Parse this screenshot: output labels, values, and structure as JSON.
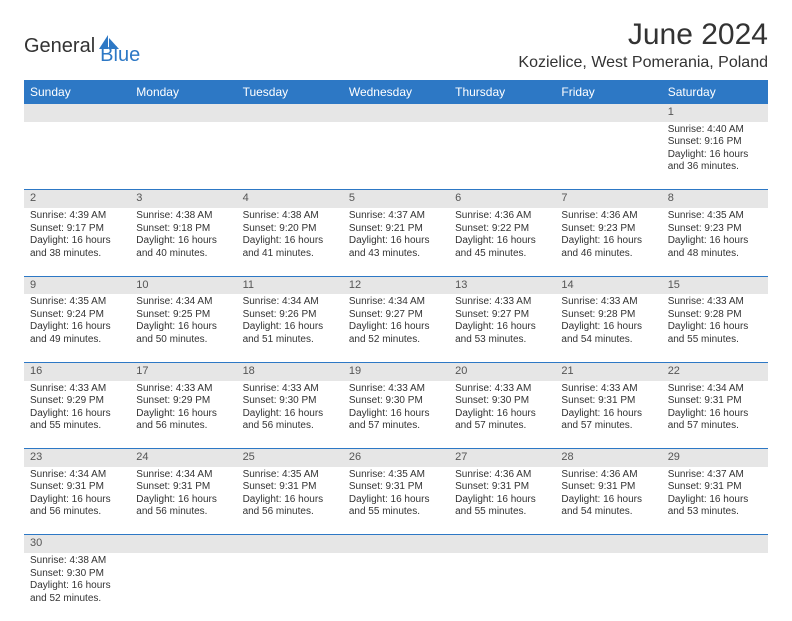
{
  "brand": {
    "part1": "General",
    "part2": "Blue",
    "color1": "#333333",
    "color2": "#2d78c5"
  },
  "title": "June 2024",
  "location": "Kozielice, West Pomerania, Poland",
  "header_bg": "#2d78c5",
  "header_fg": "#ffffff",
  "daynum_bg": "#e6e6e6",
  "divider_color": "#2d78c5",
  "weekdays": [
    "Sunday",
    "Monday",
    "Tuesday",
    "Wednesday",
    "Thursday",
    "Friday",
    "Saturday"
  ],
  "weeks": [
    {
      "nums": [
        "",
        "",
        "",
        "",
        "",
        "",
        "1"
      ],
      "cells": [
        null,
        null,
        null,
        null,
        null,
        null,
        {
          "sunrise": "Sunrise: 4:40 AM",
          "sunset": "Sunset: 9:16 PM",
          "day1": "Daylight: 16 hours",
          "day2": "and 36 minutes."
        }
      ]
    },
    {
      "nums": [
        "2",
        "3",
        "4",
        "5",
        "6",
        "7",
        "8"
      ],
      "cells": [
        {
          "sunrise": "Sunrise: 4:39 AM",
          "sunset": "Sunset: 9:17 PM",
          "day1": "Daylight: 16 hours",
          "day2": "and 38 minutes."
        },
        {
          "sunrise": "Sunrise: 4:38 AM",
          "sunset": "Sunset: 9:18 PM",
          "day1": "Daylight: 16 hours",
          "day2": "and 40 minutes."
        },
        {
          "sunrise": "Sunrise: 4:38 AM",
          "sunset": "Sunset: 9:20 PM",
          "day1": "Daylight: 16 hours",
          "day2": "and 41 minutes."
        },
        {
          "sunrise": "Sunrise: 4:37 AM",
          "sunset": "Sunset: 9:21 PM",
          "day1": "Daylight: 16 hours",
          "day2": "and 43 minutes."
        },
        {
          "sunrise": "Sunrise: 4:36 AM",
          "sunset": "Sunset: 9:22 PM",
          "day1": "Daylight: 16 hours",
          "day2": "and 45 minutes."
        },
        {
          "sunrise": "Sunrise: 4:36 AM",
          "sunset": "Sunset: 9:23 PM",
          "day1": "Daylight: 16 hours",
          "day2": "and 46 minutes."
        },
        {
          "sunrise": "Sunrise: 4:35 AM",
          "sunset": "Sunset: 9:23 PM",
          "day1": "Daylight: 16 hours",
          "day2": "and 48 minutes."
        }
      ]
    },
    {
      "nums": [
        "9",
        "10",
        "11",
        "12",
        "13",
        "14",
        "15"
      ],
      "cells": [
        {
          "sunrise": "Sunrise: 4:35 AM",
          "sunset": "Sunset: 9:24 PM",
          "day1": "Daylight: 16 hours",
          "day2": "and 49 minutes."
        },
        {
          "sunrise": "Sunrise: 4:34 AM",
          "sunset": "Sunset: 9:25 PM",
          "day1": "Daylight: 16 hours",
          "day2": "and 50 minutes."
        },
        {
          "sunrise": "Sunrise: 4:34 AM",
          "sunset": "Sunset: 9:26 PM",
          "day1": "Daylight: 16 hours",
          "day2": "and 51 minutes."
        },
        {
          "sunrise": "Sunrise: 4:34 AM",
          "sunset": "Sunset: 9:27 PM",
          "day1": "Daylight: 16 hours",
          "day2": "and 52 minutes."
        },
        {
          "sunrise": "Sunrise: 4:33 AM",
          "sunset": "Sunset: 9:27 PM",
          "day1": "Daylight: 16 hours",
          "day2": "and 53 minutes."
        },
        {
          "sunrise": "Sunrise: 4:33 AM",
          "sunset": "Sunset: 9:28 PM",
          "day1": "Daylight: 16 hours",
          "day2": "and 54 minutes."
        },
        {
          "sunrise": "Sunrise: 4:33 AM",
          "sunset": "Sunset: 9:28 PM",
          "day1": "Daylight: 16 hours",
          "day2": "and 55 minutes."
        }
      ]
    },
    {
      "nums": [
        "16",
        "17",
        "18",
        "19",
        "20",
        "21",
        "22"
      ],
      "cells": [
        {
          "sunrise": "Sunrise: 4:33 AM",
          "sunset": "Sunset: 9:29 PM",
          "day1": "Daylight: 16 hours",
          "day2": "and 55 minutes."
        },
        {
          "sunrise": "Sunrise: 4:33 AM",
          "sunset": "Sunset: 9:29 PM",
          "day1": "Daylight: 16 hours",
          "day2": "and 56 minutes."
        },
        {
          "sunrise": "Sunrise: 4:33 AM",
          "sunset": "Sunset: 9:30 PM",
          "day1": "Daylight: 16 hours",
          "day2": "and 56 minutes."
        },
        {
          "sunrise": "Sunrise: 4:33 AM",
          "sunset": "Sunset: 9:30 PM",
          "day1": "Daylight: 16 hours",
          "day2": "and 57 minutes."
        },
        {
          "sunrise": "Sunrise: 4:33 AM",
          "sunset": "Sunset: 9:30 PM",
          "day1": "Daylight: 16 hours",
          "day2": "and 57 minutes."
        },
        {
          "sunrise": "Sunrise: 4:33 AM",
          "sunset": "Sunset: 9:31 PM",
          "day1": "Daylight: 16 hours",
          "day2": "and 57 minutes."
        },
        {
          "sunrise": "Sunrise: 4:34 AM",
          "sunset": "Sunset: 9:31 PM",
          "day1": "Daylight: 16 hours",
          "day2": "and 57 minutes."
        }
      ]
    },
    {
      "nums": [
        "23",
        "24",
        "25",
        "26",
        "27",
        "28",
        "29"
      ],
      "cells": [
        {
          "sunrise": "Sunrise: 4:34 AM",
          "sunset": "Sunset: 9:31 PM",
          "day1": "Daylight: 16 hours",
          "day2": "and 56 minutes."
        },
        {
          "sunrise": "Sunrise: 4:34 AM",
          "sunset": "Sunset: 9:31 PM",
          "day1": "Daylight: 16 hours",
          "day2": "and 56 minutes."
        },
        {
          "sunrise": "Sunrise: 4:35 AM",
          "sunset": "Sunset: 9:31 PM",
          "day1": "Daylight: 16 hours",
          "day2": "and 56 minutes."
        },
        {
          "sunrise": "Sunrise: 4:35 AM",
          "sunset": "Sunset: 9:31 PM",
          "day1": "Daylight: 16 hours",
          "day2": "and 55 minutes."
        },
        {
          "sunrise": "Sunrise: 4:36 AM",
          "sunset": "Sunset: 9:31 PM",
          "day1": "Daylight: 16 hours",
          "day2": "and 55 minutes."
        },
        {
          "sunrise": "Sunrise: 4:36 AM",
          "sunset": "Sunset: 9:31 PM",
          "day1": "Daylight: 16 hours",
          "day2": "and 54 minutes."
        },
        {
          "sunrise": "Sunrise: 4:37 AM",
          "sunset": "Sunset: 9:31 PM",
          "day1": "Daylight: 16 hours",
          "day2": "and 53 minutes."
        }
      ]
    },
    {
      "nums": [
        "30",
        "",
        "",
        "",
        "",
        "",
        ""
      ],
      "cells": [
        {
          "sunrise": "Sunrise: 4:38 AM",
          "sunset": "Sunset: 9:30 PM",
          "day1": "Daylight: 16 hours",
          "day2": "and 52 minutes."
        },
        null,
        null,
        null,
        null,
        null,
        null
      ]
    }
  ]
}
